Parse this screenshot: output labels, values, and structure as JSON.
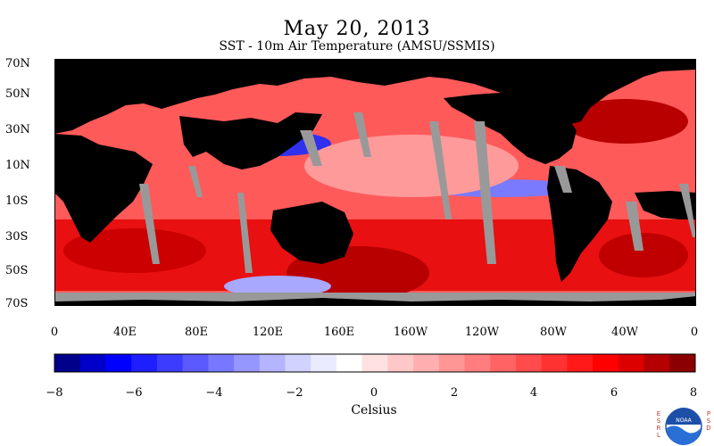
{
  "title": "May 20, 2013",
  "subtitle": "SST - 10m Air Temperature (AMSU/SSMIS)",
  "lat_labels": [
    "70N",
    "50N",
    "30N",
    "10N",
    "10S",
    "30S",
    "50S",
    "70S"
  ],
  "lon_labels": [
    "0",
    "40E",
    "80E",
    "120E",
    "160E",
    "160W",
    "120W",
    "80W",
    "40W",
    "0"
  ],
  "colorbar": {
    "title": "Celsius",
    "ticks": [
      "−8",
      "−6",
      "−4",
      "−2",
      "0",
      "2",
      "4",
      "6",
      "8"
    ],
    "colors": [
      "#00008b",
      "#0000c8",
      "#0000ff",
      "#1e1eff",
      "#3c3cff",
      "#5a5aff",
      "#7878ff",
      "#9696ff",
      "#b4b4ff",
      "#d2d2ff",
      "#ebebff",
      "#ffffff",
      "#ffe1e1",
      "#ffc8c8",
      "#ffafaf",
      "#ff9696",
      "#ff7d7d",
      "#ff6464",
      "#ff4b4b",
      "#ff3232",
      "#ff1919",
      "#ff0000",
      "#dc0000",
      "#b40000",
      "#8b0000"
    ]
  },
  "map_colors": {
    "land": "#000000",
    "missing": "#999999",
    "ocean_warm": "#ff2222",
    "ocean_hot": "#c80000",
    "ocean_cool": "#4a4aff",
    "ocean_mild": "#ff9a9a"
  },
  "logo": {
    "left_letters": "ESRL",
    "right_letters": "PSD",
    "center": "NOAA"
  }
}
